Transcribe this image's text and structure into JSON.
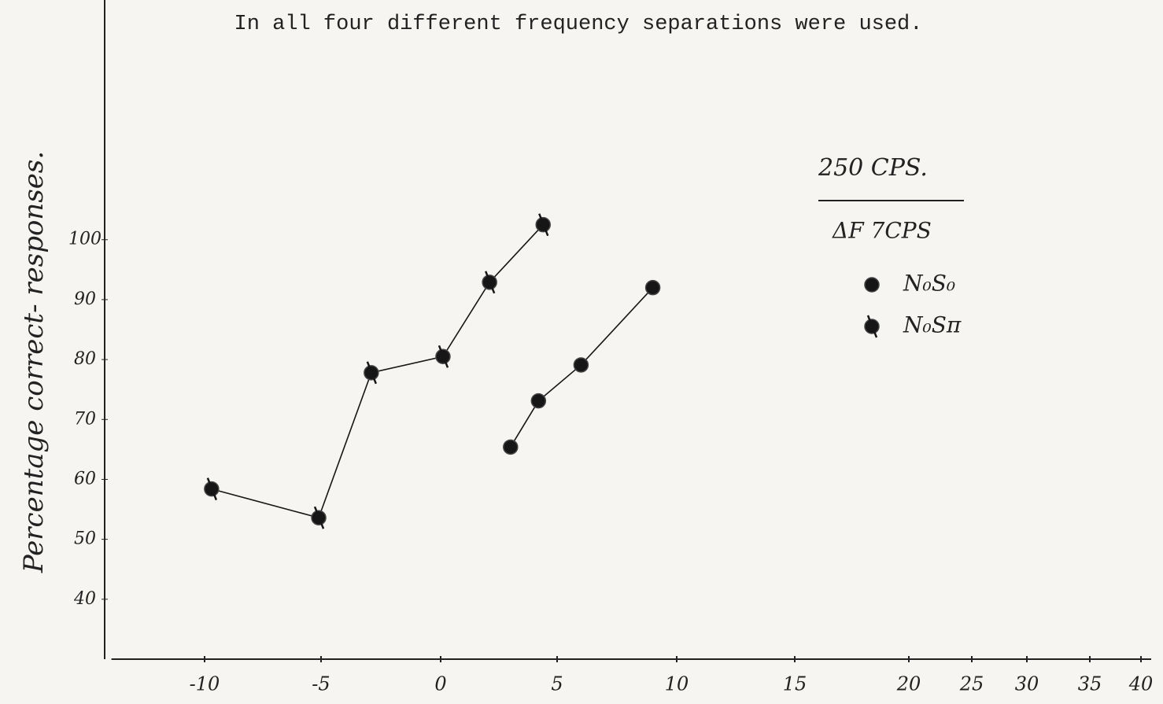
{
  "chart_data": {
    "type": "line",
    "title": "In all four different frequency separations were used.",
    "y_label": "Percentage correct- responses.",
    "annotations": [
      "250 CPS.",
      "ΔF 7CPS"
    ],
    "xlim": [
      -14,
      41
    ],
    "xticks": [
      -10,
      -5,
      0,
      5,
      10,
      15,
      20,
      25,
      30,
      35,
      40
    ],
    "ylim": [
      30,
      140
    ],
    "yticks": [
      40,
      50,
      60,
      70,
      80,
      90,
      100
    ],
    "series": [
      {
        "name": "N₀S₀",
        "color": "#161616",
        "marker": "plain",
        "x": [
          3.0,
          4.2,
          6.0,
          9.0
        ],
        "values": [
          65.4,
          73.1,
          79.1,
          92.0
        ]
      },
      {
        "name": "N₀Sπ",
        "color": "#161616",
        "marker": "ticked",
        "x": [
          -9.7,
          -5.1,
          -2.9,
          0.1,
          2.1,
          4.4
        ],
        "values": [
          58.4,
          53.6,
          77.8,
          80.5,
          92.9,
          102.5
        ]
      }
    ]
  }
}
